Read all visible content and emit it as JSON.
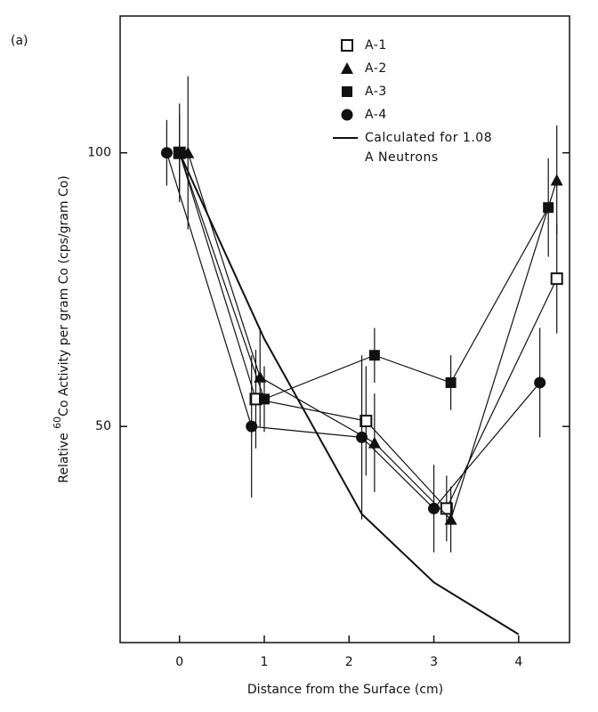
{
  "chart_data": {
    "type": "scatter",
    "panel_label": "(a)",
    "xlabel": "Distance from the Surface (cm)",
    "ylabel_prefix": "Relative ",
    "ylabel_sup": "60",
    "ylabel_rest": "Co Activity per gram Co (cps/gram Co)",
    "xlim": [
      -0.7,
      4.6
    ],
    "xticks": [
      0,
      1,
      2,
      3,
      4
    ],
    "ylim": [
      10.5,
      125
    ],
    "yticks": [
      50,
      100
    ],
    "series": [
      {
        "name": "A-1",
        "marker": "open-square",
        "color": "#111111",
        "x": [
          0.0,
          0.9,
          2.2,
          3.15,
          4.45
        ],
        "values": [
          100,
          55,
          51,
          35,
          77
        ],
        "errors": [
          7,
          9,
          10,
          6,
          10
        ]
      },
      {
        "name": "A-2",
        "marker": "triangle",
        "color": "#111111",
        "x": [
          0.1,
          0.95,
          2.3,
          3.2,
          4.45
        ],
        "values": [
          100,
          59,
          47,
          33,
          95
        ],
        "errors": [
          14,
          9,
          9,
          6,
          10
        ]
      },
      {
        "name": "A-3",
        "marker": "filled-square",
        "color": "#111111",
        "x": [
          0.0,
          1.0,
          2.3,
          3.2,
          4.35
        ],
        "values": [
          100,
          55,
          63,
          58,
          90
        ],
        "errors": [
          9,
          6,
          5,
          5,
          9
        ]
      },
      {
        "name": "A-4",
        "marker": "circle",
        "color": "#111111",
        "x": [
          -0.15,
          0.85,
          2.15,
          3.0,
          4.25
        ],
        "values": [
          100,
          50,
          48,
          35,
          58
        ],
        "errors": [
          6,
          13,
          15,
          8,
          10
        ]
      },
      {
        "name": "Calculated for 1.08 A Neutrons",
        "marker": "none",
        "color": "#111111",
        "x": [
          0.0,
          1.0,
          2.15,
          3.0,
          4.0
        ],
        "values": [
          100,
          66,
          34,
          21.5,
          12
        ]
      }
    ]
  }
}
